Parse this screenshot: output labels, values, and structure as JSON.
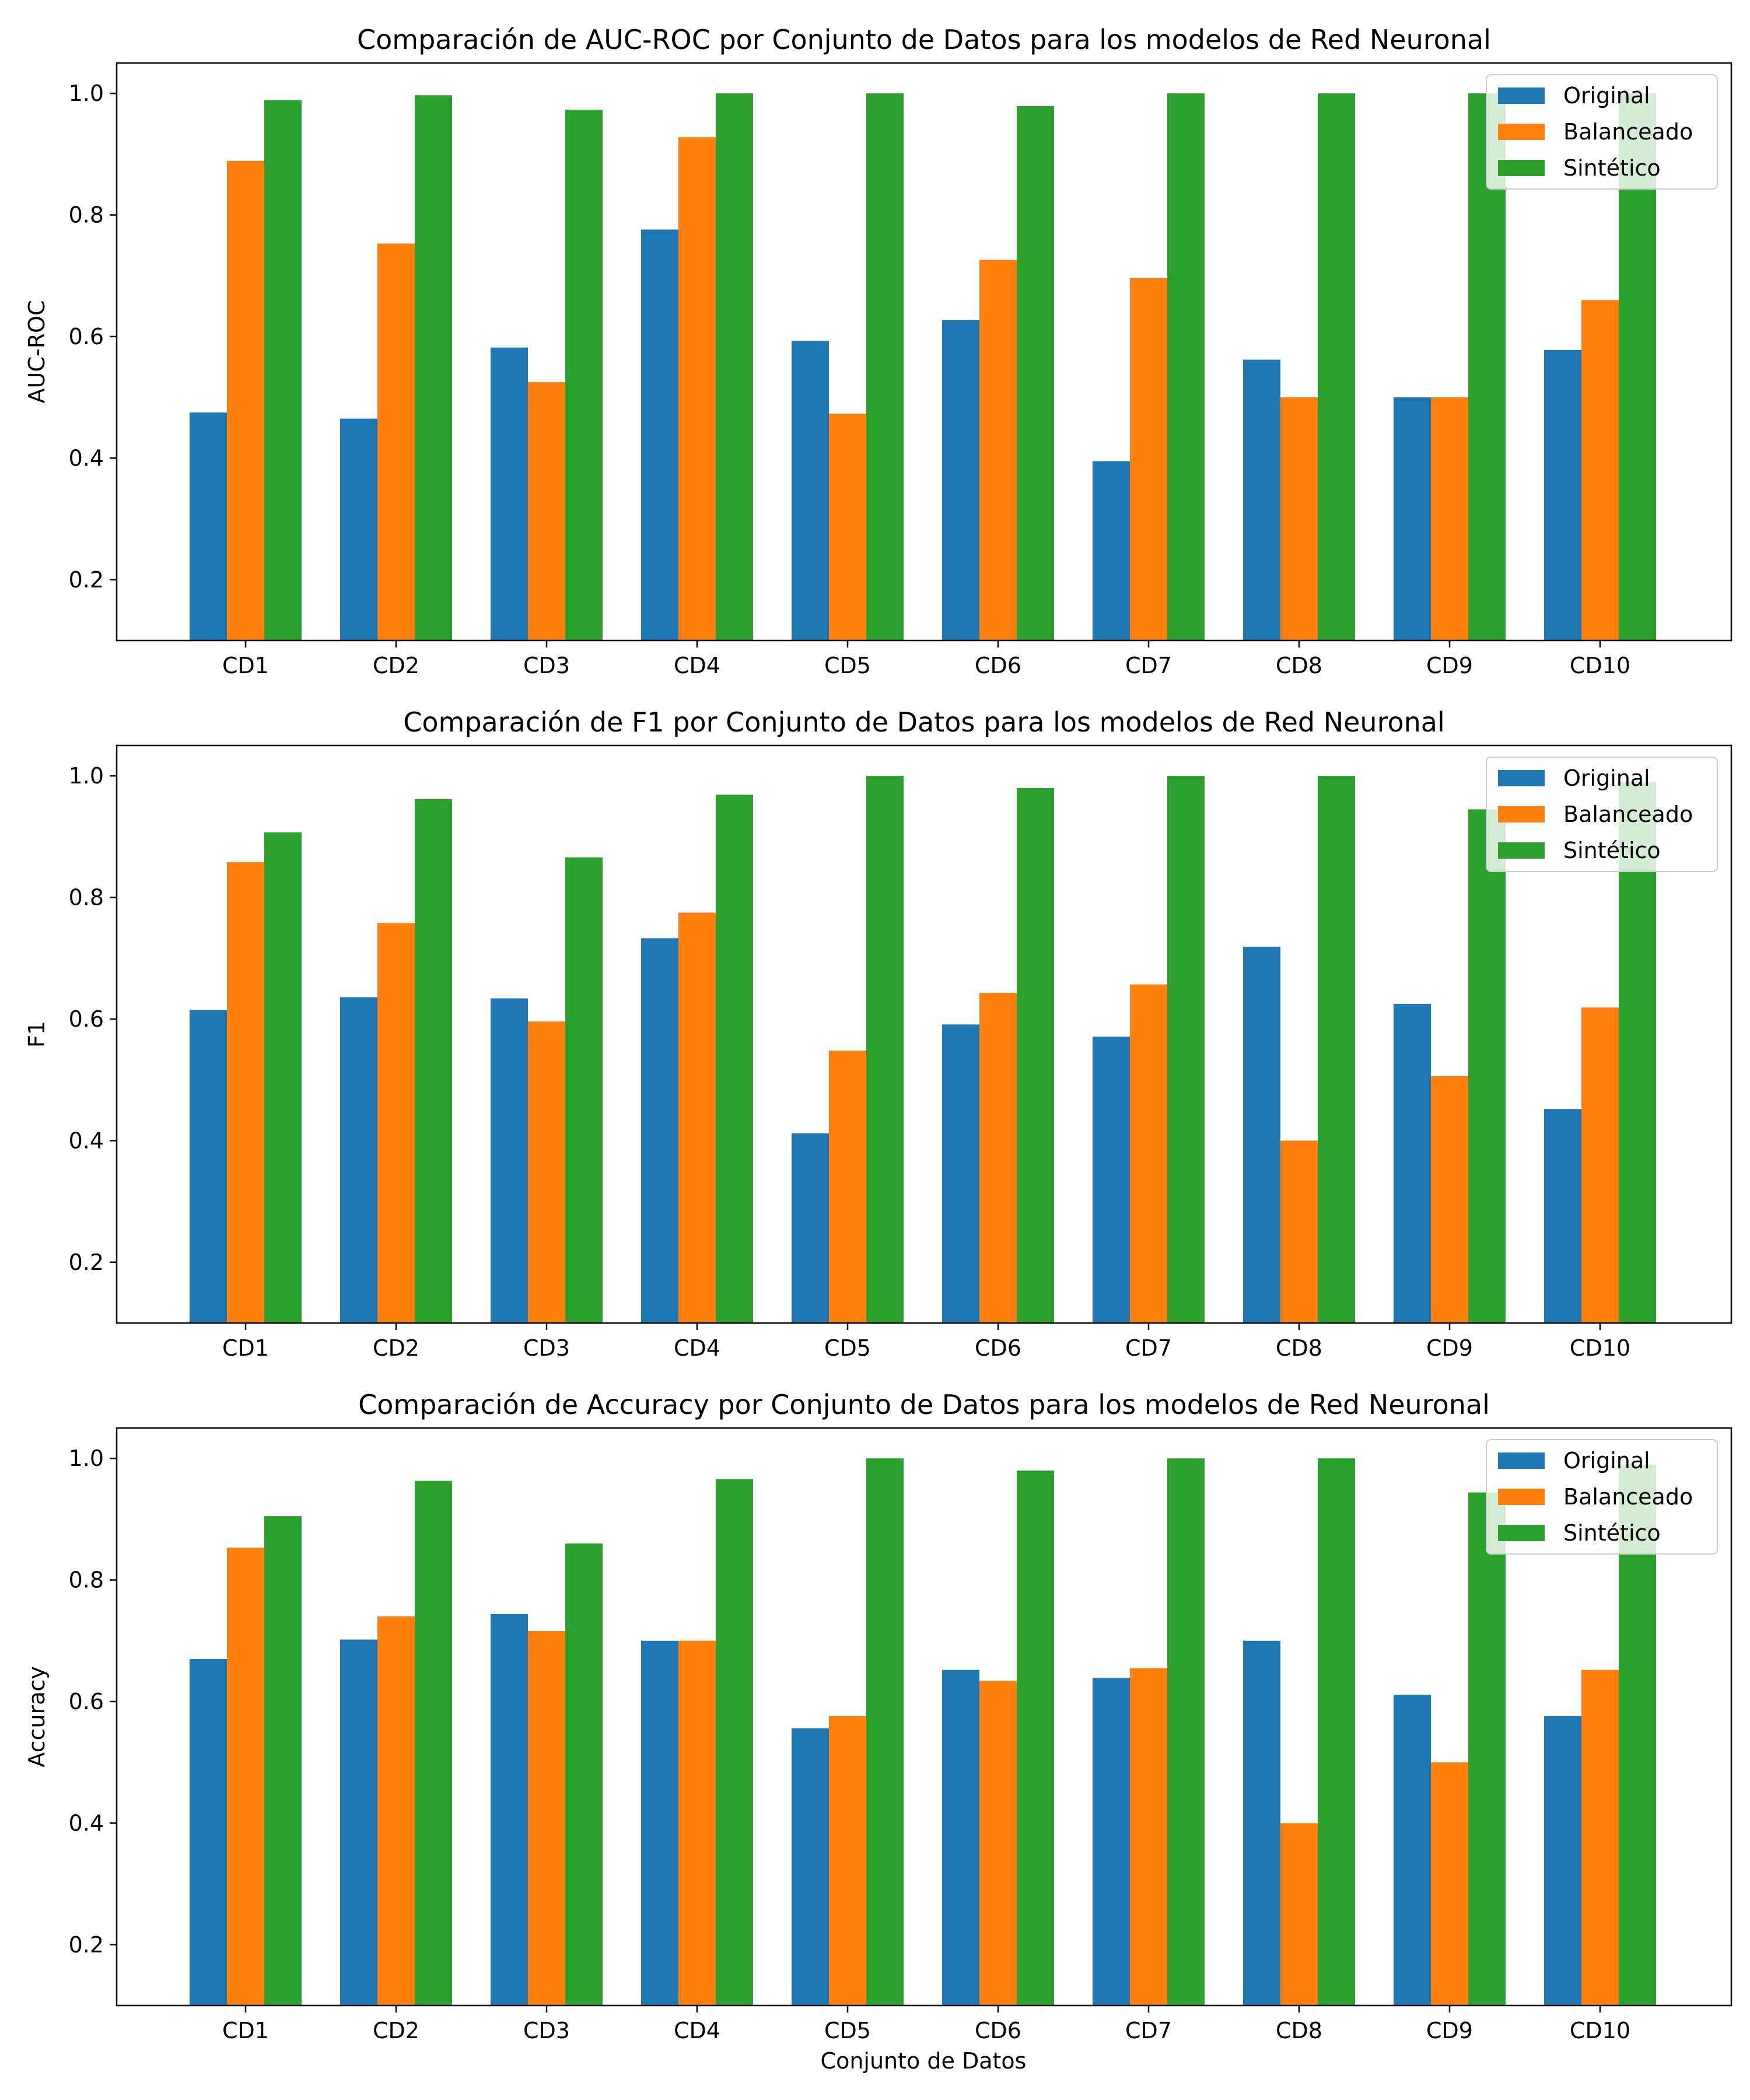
{
  "figure": {
    "xlabel": "Conjunto de Datos"
  },
  "colors": {
    "Original": "#1f77b4",
    "Balanceado": "#ff7f0e",
    "Sintético": "#2ca02c"
  },
  "chart_data": [
    {
      "type": "bar",
      "title": "Comparación de AUC-ROC por Conjunto de Datos para los modelos de Red Neuronal",
      "xlabel": "",
      "ylabel": "AUC-ROC",
      "ylim": [
        0.1,
        1.05
      ],
      "yticks": [
        0.2,
        0.4,
        0.6,
        0.8,
        1.0
      ],
      "ytick_labels": [
        "0.2",
        "0.4",
        "0.6",
        "0.8",
        "1.0"
      ],
      "categories": [
        "CD1",
        "CD2",
        "CD3",
        "CD4",
        "CD5",
        "CD6",
        "CD7",
        "CD8",
        "CD9",
        "CD10"
      ],
      "legend_position": "top-right",
      "series": [
        {
          "name": "Original",
          "values": [
            0.475,
            0.465,
            0.582,
            0.776,
            0.593,
            0.627,
            0.395,
            0.562,
            0.5,
            0.578
          ]
        },
        {
          "name": "Balanceado",
          "values": [
            0.889,
            0.753,
            0.525,
            0.928,
            0.473,
            0.726,
            0.696,
            0.5,
            0.5,
            0.66
          ]
        },
        {
          "name": "Sintético",
          "values": [
            0.989,
            0.997,
            0.973,
            1.0,
            1.0,
            0.979,
            1.0,
            1.0,
            1.0,
            1.0
          ]
        }
      ]
    },
    {
      "type": "bar",
      "title": "Comparación de F1 por Conjunto de Datos para los modelos de Red Neuronal",
      "xlabel": "",
      "ylabel": "F1",
      "ylim": [
        0.1,
        1.05
      ],
      "yticks": [
        0.2,
        0.4,
        0.6,
        0.8,
        1.0
      ],
      "ytick_labels": [
        "0.2",
        "0.4",
        "0.6",
        "0.8",
        "1.0"
      ],
      "categories": [
        "CD1",
        "CD2",
        "CD3",
        "CD4",
        "CD5",
        "CD6",
        "CD7",
        "CD8",
        "CD9",
        "CD10"
      ],
      "legend_position": "top-right",
      "series": [
        {
          "name": "Original",
          "values": [
            0.615,
            0.636,
            0.634,
            0.733,
            0.412,
            0.591,
            0.571,
            0.719,
            0.625,
            0.452
          ]
        },
        {
          "name": "Balanceado",
          "values": [
            0.858,
            0.758,
            0.596,
            0.775,
            0.548,
            0.643,
            0.657,
            0.4,
            0.506,
            0.619
          ]
        },
        {
          "name": "Sintético",
          "values": [
            0.907,
            0.962,
            0.866,
            0.969,
            1.0,
            0.98,
            1.0,
            1.0,
            0.945,
            0.99
          ]
        }
      ]
    },
    {
      "type": "bar",
      "title": "Comparación de Accuracy por Conjunto de Datos para los modelos de Red Neuronal",
      "xlabel": "Conjunto de Datos",
      "ylabel": "Accuracy",
      "ylim": [
        0.1,
        1.05
      ],
      "yticks": [
        0.2,
        0.4,
        0.6,
        0.8,
        1.0
      ],
      "ytick_labels": [
        "0.2",
        "0.4",
        "0.6",
        "0.8",
        "1.0"
      ],
      "categories": [
        "CD1",
        "CD2",
        "CD3",
        "CD4",
        "CD5",
        "CD6",
        "CD7",
        "CD8",
        "CD9",
        "CD10"
      ],
      "legend_position": "top-right",
      "series": [
        {
          "name": "Original",
          "values": [
            0.67,
            0.702,
            0.744,
            0.7,
            0.556,
            0.652,
            0.639,
            0.7,
            0.611,
            0.576
          ]
        },
        {
          "name": "Balanceado",
          "values": [
            0.853,
            0.74,
            0.716,
            0.7,
            0.576,
            0.634,
            0.655,
            0.4,
            0.5,
            0.652
          ]
        },
        {
          "name": "Sintético",
          "values": [
            0.905,
            0.963,
            0.86,
            0.966,
            1.0,
            0.98,
            1.0,
            1.0,
            0.944,
            0.99
          ]
        }
      ]
    }
  ]
}
